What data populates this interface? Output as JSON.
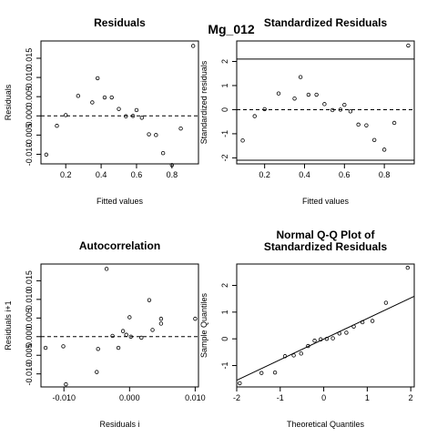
{
  "figure": {
    "title": "Mg_012"
  },
  "chart_data": [
    {
      "id": "residuals",
      "type": "scatter",
      "title": "Residuals",
      "xlabel": "Fitted values",
      "ylabel": "Residuals",
      "xlim": [
        0.06,
        0.95
      ],
      "ylim": [
        -0.0125,
        0.0195
      ],
      "xticks": [
        0.2,
        0.4,
        0.6,
        0.8
      ],
      "xtick_labels": [
        "0.2",
        "0.4",
        "0.6",
        "0.8"
      ],
      "yticks": [
        -0.01,
        -0.005,
        0.0,
        0.005,
        0.01,
        0.015
      ],
      "ytick_labels": [
        "-0.010",
        "-0.005",
        "0.000",
        "0.005",
        "0.010",
        "0.015"
      ],
      "hlines": [
        {
          "y": 0,
          "style": "dashed"
        }
      ],
      "points": [
        [
          0.09,
          -0.0101
        ],
        [
          0.15,
          -0.0026
        ],
        [
          0.2,
          0.0002
        ],
        [
          0.27,
          0.0052
        ],
        [
          0.35,
          0.0035
        ],
        [
          0.38,
          0.0098
        ],
        [
          0.42,
          0.0048
        ],
        [
          0.46,
          0.0048
        ],
        [
          0.5,
          0.0018
        ],
        [
          0.54,
          -0.0001
        ],
        [
          0.58,
          0.0
        ],
        [
          0.6,
          0.0015
        ],
        [
          0.63,
          -0.0005
        ],
        [
          0.67,
          -0.0048
        ],
        [
          0.71,
          -0.005
        ],
        [
          0.75,
          -0.0097
        ],
        [
          0.8,
          -0.0128
        ],
        [
          0.85,
          -0.0033
        ],
        [
          0.92,
          0.0182
        ]
      ]
    },
    {
      "id": "standardized",
      "type": "scatter",
      "title": "Standardized Residuals",
      "xlabel": "Fitted values",
      "ylabel": "Standardized residuals",
      "xlim": [
        0.06,
        0.95
      ],
      "ylim": [
        -2.25,
        2.85
      ],
      "xticks": [
        0.2,
        0.4,
        0.6,
        0.8
      ],
      "xtick_labels": [
        "0.2",
        "0.4",
        "0.6",
        "0.8"
      ],
      "yticks": [
        -2,
        -1,
        0,
        1,
        2
      ],
      "ytick_labels": [
        "-2",
        "-1",
        "0",
        "1",
        "2"
      ],
      "hlines": [
        {
          "y": 0,
          "style": "dashed"
        },
        {
          "y": 2.1,
          "style": "solid"
        },
        {
          "y": -2.1,
          "style": "solid"
        }
      ],
      "points": [
        [
          0.09,
          -1.28
        ],
        [
          0.15,
          -0.27
        ],
        [
          0.2,
          0.02
        ],
        [
          0.27,
          0.67
        ],
        [
          0.35,
          0.46
        ],
        [
          0.38,
          1.35
        ],
        [
          0.42,
          0.62
        ],
        [
          0.46,
          0.62
        ],
        [
          0.5,
          0.23
        ],
        [
          0.54,
          -0.02
        ],
        [
          0.58,
          0.0
        ],
        [
          0.6,
          0.2
        ],
        [
          0.63,
          -0.07
        ],
        [
          0.67,
          -0.62
        ],
        [
          0.71,
          -0.65
        ],
        [
          0.75,
          -1.26
        ],
        [
          0.8,
          -1.66
        ],
        [
          0.85,
          -0.55
        ],
        [
          0.92,
          2.66
        ]
      ]
    },
    {
      "id": "autocorrelation",
      "type": "scatter",
      "title": "Autocorrelation",
      "xlabel": "Residuals i",
      "ylabel": "Residuals i+1",
      "xlim": [
        -0.0135,
        0.0105
      ],
      "ylim": [
        -0.0135,
        0.0195
      ],
      "xticks": [
        -0.01,
        0.0,
        0.01
      ],
      "xtick_labels": [
        "-0.010",
        "0.000",
        "0.010"
      ],
      "yticks": [
        -0.01,
        -0.005,
        0.0,
        0.005,
        0.01,
        0.015
      ],
      "ytick_labels": [
        "-0.010",
        "-0.005",
        "0.000",
        "0.005",
        "0.010",
        "0.015"
      ],
      "hlines": [
        {
          "y": 0,
          "style": "dashed"
        }
      ],
      "points": [
        [
          -0.0128,
          -0.003
        ],
        [
          -0.0101,
          -0.0026
        ],
        [
          -0.0097,
          -0.0128
        ],
        [
          -0.005,
          -0.0095
        ],
        [
          -0.0048,
          -0.0033
        ],
        [
          -0.0035,
          0.0182
        ],
        [
          -0.0026,
          0.0002
        ],
        [
          -0.0017,
          -0.003
        ],
        [
          -0.001,
          0.0015
        ],
        [
          -0.0005,
          0.0005
        ],
        [
          0.0,
          0.0052
        ],
        [
          0.0002,
          0.0
        ],
        [
          0.0018,
          -0.0003
        ],
        [
          0.003,
          0.0098
        ],
        [
          0.0035,
          0.0018
        ],
        [
          0.0048,
          0.0035
        ],
        [
          0.0048,
          0.0048
        ],
        [
          0.01,
          0.0048
        ]
      ]
    },
    {
      "id": "qq",
      "type": "scatter",
      "title": [
        "Normal Q-Q Plot of",
        "Standardized Residuals"
      ],
      "xlabel": "Theoretical Quantiles",
      "ylabel": "Sample Quantiles",
      "xlim": [
        -2.0,
        2.08
      ],
      "ylim": [
        -1.8,
        2.8
      ],
      "xticks": [
        -2,
        -1,
        0,
        1,
        2
      ],
      "xtick_labels": [
        "-2",
        "-1",
        "0",
        "1",
        "2"
      ],
      "yticks": [
        -1,
        0,
        1,
        2
      ],
      "ytick_labels": [
        "-1",
        "0",
        "1",
        "2"
      ],
      "abline": {
        "intercept": -0.01,
        "slope": 0.77
      },
      "points": [
        [
          -1.93,
          -1.66
        ],
        [
          -1.43,
          -1.28
        ],
        [
          -1.12,
          -1.26
        ],
        [
          -0.89,
          -0.65
        ],
        [
          -0.69,
          -0.62
        ],
        [
          -0.52,
          -0.55
        ],
        [
          -0.36,
          -0.27
        ],
        [
          -0.21,
          -0.07
        ],
        [
          -0.07,
          -0.02
        ],
        [
          0.07,
          0.0
        ],
        [
          0.21,
          0.02
        ],
        [
          0.36,
          0.2
        ],
        [
          0.52,
          0.23
        ],
        [
          0.69,
          0.46
        ],
        [
          0.89,
          0.62
        ],
        [
          1.12,
          0.67
        ],
        [
          1.43,
          1.35
        ],
        [
          1.93,
          2.66
        ]
      ]
    }
  ]
}
